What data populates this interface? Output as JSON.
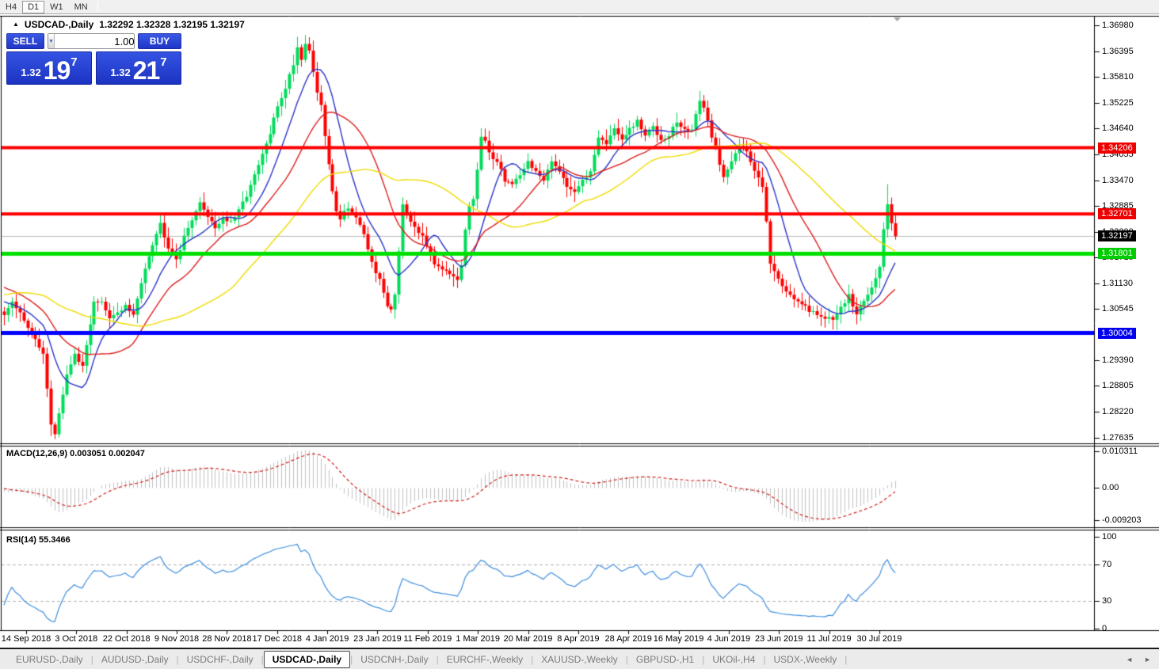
{
  "toolbar": {
    "timeframes": [
      {
        "label": "H4",
        "active": false
      },
      {
        "label": "D1",
        "active": true
      },
      {
        "label": "W1",
        "active": false
      },
      {
        "label": "MN",
        "active": false
      }
    ]
  },
  "chart": {
    "title": {
      "collapse_icon": "▲",
      "symbol": "USDCAD-,Daily",
      "ohlc": "1.32292 1.32328 1.32195 1.32197"
    },
    "trade_panel": {
      "sell_label": "SELL",
      "buy_label": "BUY",
      "volume": "1.00",
      "spin_down_icon": "▼",
      "spin_up_icon": "▲",
      "sell_price": {
        "prefix": "1.32",
        "big": "19",
        "sup": "7"
      },
      "buy_price": {
        "prefix": "1.32",
        "big": "21",
        "sup": "7"
      }
    },
    "macd_label": "MACD(12,26,9) 0.003051 0.002047",
    "rsi_label": "RSI(14) 55.3466",
    "price_axis": {
      "ticks": [
        "1.36980",
        "1.36395",
        "1.35810",
        "1.35225",
        "1.34640",
        "1.34055",
        "1.33470",
        "1.32885",
        "1.32300",
        "1.31715",
        "1.31130",
        "1.30545",
        "1.29390",
        "1.28805",
        "1.28220",
        "1.27635"
      ],
      "badges": [
        {
          "text": "1.34206",
          "price": 1.34206,
          "color": "#EE0000"
        },
        {
          "text": "1.32701",
          "price": 1.32701,
          "color": "#EE0000"
        },
        {
          "text": "1.32197",
          "price": 1.32197,
          "color": "#000000"
        },
        {
          "text": "1.31801",
          "price": 1.31801,
          "color": "#00CC00"
        },
        {
          "text": "1.30004",
          "price": 1.30004,
          "color": "#0000EE"
        }
      ]
    },
    "macd_axis": [
      {
        "text": "0.010311",
        "value": 0.010311
      },
      {
        "text": "0.00",
        "value": 0
      },
      {
        "text": "-0.009203",
        "value": -0.009203
      }
    ],
    "rsi_axis": [
      {
        "text": "100",
        "value": 100
      },
      {
        "text": "70",
        "value": 70
      },
      {
        "text": "30",
        "value": 30
      },
      {
        "text": "0",
        "value": 0
      }
    ],
    "date_axis": [
      "14 Sep 2018",
      "3 Oct 2018",
      "22 Oct 2018",
      "9 Nov 2018",
      "28 Nov 2018",
      "17 Dec 2018",
      "4 Jan 2019",
      "23 Jan 2019",
      "11 Feb 2019",
      "1 Mar 2019",
      "20 Mar 2019",
      "8 Apr 2019",
      "28 Apr 2019",
      "16 May 2019",
      "4 Jun 2019",
      "23 Jun 2019",
      "11 Jul 2019",
      "30 Jul 2019"
    ]
  },
  "chart_data": {
    "type": "candlestick",
    "symbol": "USDCAD",
    "timeframe": "Daily",
    "title": "USDCAD-,Daily",
    "ohlc_current": {
      "open": 1.32292,
      "high": 1.32328,
      "low": 1.32195,
      "close": 1.32197
    },
    "bid": 1.32197,
    "ask": 1.32217,
    "price_range": [
      1.27635,
      1.3698
    ],
    "candle_count": 229,
    "candle_colors": {
      "up": "#00DC5A",
      "down": "#FF0000"
    },
    "price_anchors": [
      [
        0,
        1.304
      ],
      [
        2,
        1.3066
      ],
      [
        4,
        1.3052
      ],
      [
        6,
        1.3008
      ],
      [
        8,
        1.2985
      ],
      [
        10,
        1.2958
      ],
      [
        12,
        1.2788
      ],
      [
        13,
        1.2772
      ],
      [
        14,
        1.282
      ],
      [
        16,
        1.2902
      ],
      [
        18,
        1.2958
      ],
      [
        20,
        1.292
      ],
      [
        23,
        1.3075
      ],
      [
        25,
        1.3068
      ],
      [
        27,
        1.303
      ],
      [
        29,
        1.3048
      ],
      [
        31,
        1.3062
      ],
      [
        33,
        1.3038
      ],
      [
        36,
        1.3152
      ],
      [
        38,
        1.3205
      ],
      [
        40,
        1.3248
      ],
      [
        42,
        1.3198
      ],
      [
        44,
        1.317
      ],
      [
        46,
        1.3215
      ],
      [
        48,
        1.3262
      ],
      [
        50,
        1.3292
      ],
      [
        52,
        1.3268
      ],
      [
        54,
        1.324
      ],
      [
        56,
        1.3262
      ],
      [
        58,
        1.325
      ],
      [
        60,
        1.3275
      ],
      [
        62,
        1.3315
      ],
      [
        64,
        1.3355
      ],
      [
        66,
        1.3404
      ],
      [
        68,
        1.3452
      ],
      [
        70,
        1.3515
      ],
      [
        72,
        1.3558
      ],
      [
        74,
        1.3612
      ],
      [
        75,
        1.3648
      ],
      [
        76,
        1.3625
      ],
      [
        77,
        1.3658
      ],
      [
        78,
        1.364
      ],
      [
        79,
        1.3595
      ],
      [
        80,
        1.3548
      ],
      [
        81,
        1.3512
      ],
      [
        82,
        1.3448
      ],
      [
        83,
        1.3382
      ],
      [
        84,
        1.3318
      ],
      [
        85,
        1.3282
      ],
      [
        86,
        1.3262
      ],
      [
        88,
        1.3288
      ],
      [
        90,
        1.3262
      ],
      [
        92,
        1.3218
      ],
      [
        94,
        1.3162
      ],
      [
        96,
        1.3118
      ],
      [
        98,
        1.3065
      ],
      [
        99,
        1.3055
      ],
      [
        100,
        1.3092
      ],
      [
        101,
        1.3188
      ],
      [
        102,
        1.3298
      ],
      [
        103,
        1.3275
      ],
      [
        104,
        1.3258
      ],
      [
        106,
        1.3232
      ],
      [
        108,
        1.3198
      ],
      [
        110,
        1.3162
      ],
      [
        112,
        1.3148
      ],
      [
        114,
        1.3128
      ],
      [
        116,
        1.3118
      ],
      [
        117,
        1.3152
      ],
      [
        118,
        1.3232
      ],
      [
        119,
        1.3288
      ],
      [
        120,
        1.3305
      ],
      [
        121,
        1.3372
      ],
      [
        122,
        1.3442
      ],
      [
        123,
        1.343
      ],
      [
        124,
        1.3412
      ],
      [
        126,
        1.3388
      ],
      [
        128,
        1.3348
      ],
      [
        130,
        1.3338
      ],
      [
        132,
        1.3362
      ],
      [
        134,
        1.3388
      ],
      [
        136,
        1.3368
      ],
      [
        138,
        1.3342
      ],
      [
        140,
        1.3388
      ],
      [
        142,
        1.3372
      ],
      [
        144,
        1.3335
      ],
      [
        146,
        1.3322
      ],
      [
        148,
        1.3342
      ],
      [
        150,
        1.3368
      ],
      [
        152,
        1.3448
      ],
      [
        154,
        1.3428
      ],
      [
        156,
        1.3468
      ],
      [
        158,
        1.3435
      ],
      [
        160,
        1.3462
      ],
      [
        162,
        1.3478
      ],
      [
        164,
        1.3448
      ],
      [
        166,
        1.3468
      ],
      [
        168,
        1.3442
      ],
      [
        170,
        1.3452
      ],
      [
        172,
        1.3478
      ],
      [
        174,
        1.3458
      ],
      [
        176,
        1.3465
      ],
      [
        178,
        1.3528
      ],
      [
        179,
        1.3505
      ],
      [
        180,
        1.3478
      ],
      [
        181,
        1.3448
      ],
      [
        182,
        1.3418
      ],
      [
        183,
        1.3385
      ],
      [
        184,
        1.3352
      ],
      [
        185,
        1.3372
      ],
      [
        186,
        1.3395
      ],
      [
        187,
        1.3412
      ],
      [
        188,
        1.3428
      ],
      [
        189,
        1.3418
      ],
      [
        190,
        1.3408
      ],
      [
        191,
        1.3385
      ],
      [
        192,
        1.3368
      ],
      [
        193,
        1.3352
      ],
      [
        194,
        1.3338
      ],
      [
        195,
        1.3258
      ],
      [
        196,
        1.3162
      ],
      [
        197,
        1.3138
      ],
      [
        198,
        1.3122
      ],
      [
        199,
        1.311
      ],
      [
        200,
        1.3098
      ],
      [
        202,
        1.3082
      ],
      [
        204,
        1.306
      ],
      [
        206,
        1.3052
      ],
      [
        208,
        1.3045
      ],
      [
        210,
        1.3035
      ],
      [
        212,
        1.3028
      ],
      [
        214,
        1.3062
      ],
      [
        216,
        1.3085
      ],
      [
        218,
        1.3042
      ],
      [
        220,
        1.307
      ],
      [
        222,
        1.3108
      ],
      [
        224,
        1.3148
      ],
      [
        225,
        1.3242
      ],
      [
        226,
        1.3295
      ],
      [
        227,
        1.3248
      ],
      [
        228,
        1.32197
      ]
    ],
    "prehistory_anchors": [
      [
        -50,
        1.2975
      ],
      [
        -40,
        1.304
      ],
      [
        -30,
        1.3105
      ],
      [
        -20,
        1.3145
      ],
      [
        -12,
        1.3118
      ],
      [
        -6,
        1.3082
      ],
      [
        -1,
        1.3052
      ]
    ],
    "extreme_wicks": {
      "12": {
        "low": 1.2767
      },
      "77": {
        "high": 1.3676
      },
      "226": {
        "high": 1.3338
      }
    },
    "levels": [
      {
        "price": 1.34206,
        "color": "#FF0000",
        "width": 4
      },
      {
        "price": 1.32701,
        "color": "#FF0000",
        "width": 4
      },
      {
        "price": 1.31801,
        "color": "#00E000",
        "width": 5
      },
      {
        "price": 1.30004,
        "color": "#0000FF",
        "width": 5
      }
    ],
    "current_price_line": {
      "price": 1.32197,
      "color": "#b8b8b8"
    },
    "moving_averages": [
      {
        "period": 10,
        "color": "#2B35C8"
      },
      {
        "period": 22,
        "color": "#DC2020"
      },
      {
        "period": 48,
        "color": "#F0DC00"
      }
    ],
    "macd": {
      "fast": 12,
      "slow": 26,
      "signal": 9,
      "main_value": 0.003051,
      "signal_value": 0.002047,
      "range": [
        -0.009203,
        0.010311
      ],
      "bar_color": "#c2c2c2",
      "signal_color": "#D02020"
    },
    "rsi": {
      "period": 14,
      "value": 55.3466,
      "levels": [
        70,
        30
      ],
      "color": "#3E8EDE",
      "range": [
        0,
        100
      ]
    }
  },
  "tabs": {
    "separator": "|",
    "scroll_left_icon": "◄",
    "scroll_right_icon": "►",
    "items": [
      {
        "label": "EURUSD-,Daily",
        "active": false
      },
      {
        "label": "AUDUSD-,Daily",
        "active": false
      },
      {
        "label": "USDCHF-,Daily",
        "active": false
      },
      {
        "label": "USDCAD-,Daily",
        "active": true
      },
      {
        "label": "USDCNH-,Daily",
        "active": false
      },
      {
        "label": "EURCHF-,Weekly",
        "active": false
      },
      {
        "label": "XAUUSD-,Weekly",
        "active": false
      },
      {
        "label": "GBPUSD-,H1",
        "active": false
      },
      {
        "label": "UKOil-,H4",
        "active": false
      },
      {
        "label": "USDX-,Weekly",
        "active": false
      }
    ]
  }
}
